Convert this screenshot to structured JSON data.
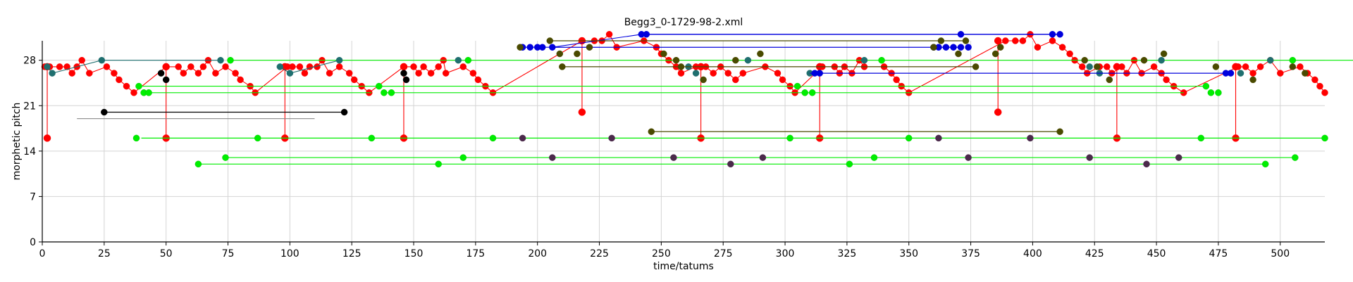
{
  "chart_data": {
    "type": "scatter",
    "title": "Begg3_0-1729-98-2.xml",
    "xlabel": "time/tatums",
    "ylabel": "morphetic pitch",
    "xlim": [
      0,
      518
    ],
    "ylim": [
      0,
      31
    ],
    "xticks": [
      0,
      25,
      50,
      75,
      100,
      125,
      150,
      175,
      200,
      225,
      250,
      275,
      300,
      325,
      350,
      375,
      400,
      425,
      450,
      475,
      500
    ],
    "yticks": [
      0,
      7,
      14,
      21,
      28
    ],
    "grid": true,
    "legend": "none",
    "colors": {
      "red": "#ff0000",
      "green": "#00ee00",
      "teal": "#1f6f6f",
      "blue": "#0000dd",
      "olive": "#4a4a00",
      "black": "#000000",
      "purple": "#4b2a4b",
      "gray": "#888888"
    },
    "series": [
      {
        "color": "red",
        "style": "chain",
        "points": [
          [
            1,
            27
          ],
          [
            3,
            27
          ],
          [
            7,
            27
          ],
          [
            10,
            27
          ],
          [
            12,
            26
          ],
          [
            14,
            27
          ],
          [
            16,
            28
          ],
          [
            19,
            26
          ],
          [
            26,
            27
          ],
          [
            29,
            26
          ],
          [
            31,
            25
          ],
          [
            34,
            24
          ],
          [
            37,
            23
          ],
          [
            50,
            27
          ],
          [
            55,
            27
          ],
          [
            57,
            26
          ],
          [
            60,
            27
          ],
          [
            63,
            26
          ],
          [
            65,
            27
          ],
          [
            67,
            28
          ],
          [
            70,
            26
          ],
          [
            74,
            27
          ],
          [
            78,
            26
          ],
          [
            80,
            25
          ],
          [
            84,
            24
          ],
          [
            86,
            23
          ],
          [
            99,
            27
          ],
          [
            101,
            27
          ],
          [
            104,
            27
          ],
          [
            106,
            26
          ],
          [
            108,
            27
          ],
          [
            111,
            27
          ],
          [
            113,
            28
          ],
          [
            116,
            26
          ],
          [
            120,
            27
          ],
          [
            124,
            26
          ],
          [
            126,
            25
          ],
          [
            129,
            24
          ],
          [
            132,
            23
          ],
          [
            146,
            27
          ],
          [
            150,
            27
          ],
          [
            152,
            26
          ],
          [
            154,
            27
          ],
          [
            157,
            26
          ],
          [
            160,
            27
          ],
          [
            162,
            28
          ],
          [
            163,
            26
          ],
          [
            170,
            27
          ],
          [
            174,
            26
          ],
          [
            176,
            25
          ],
          [
            179,
            24
          ],
          [
            182,
            23
          ],
          [
            218,
            31
          ],
          [
            223,
            31
          ],
          [
            226,
            31
          ],
          [
            229,
            32
          ],
          [
            232,
            30
          ],
          [
            243,
            31
          ],
          [
            248,
            30
          ],
          [
            250,
            29
          ],
          [
            253,
            28
          ],
          [
            256,
            27
          ],
          [
            258,
            26
          ],
          [
            264,
            27
          ],
          [
            268,
            27
          ],
          [
            271,
            26
          ],
          [
            274,
            27
          ],
          [
            277,
            26
          ],
          [
            280,
            25
          ],
          [
            283,
            26
          ],
          [
            292,
            27
          ],
          [
            297,
            26
          ],
          [
            299,
            25
          ],
          [
            302,
            24
          ],
          [
            304,
            23
          ],
          [
            315,
            27
          ],
          [
            320,
            27
          ],
          [
            322,
            26
          ],
          [
            324,
            27
          ],
          [
            327,
            26
          ],
          [
            330,
            28
          ],
          [
            332,
            27
          ],
          [
            340,
            27
          ],
          [
            343,
            26
          ],
          [
            345,
            25
          ],
          [
            347,
            24
          ],
          [
            350,
            23
          ],
          [
            389,
            31
          ],
          [
            393,
            31
          ],
          [
            396,
            31
          ],
          [
            399,
            32
          ],
          [
            402,
            30
          ],
          [
            408,
            31
          ],
          [
            412,
            30
          ],
          [
            415,
            29
          ],
          [
            417,
            28
          ],
          [
            420,
            27
          ],
          [
            422,
            26
          ],
          [
            427,
            27
          ],
          [
            430,
            27
          ],
          [
            432,
            26
          ],
          [
            436,
            27
          ],
          [
            438,
            26
          ],
          [
            441,
            28
          ],
          [
            444,
            26
          ],
          [
            449,
            27
          ],
          [
            452,
            26
          ],
          [
            454,
            25
          ],
          [
            457,
            24
          ],
          [
            461,
            23
          ],
          [
            483,
            27
          ],
          [
            486,
            27
          ],
          [
            489,
            26
          ],
          [
            492,
            27
          ],
          [
            496,
            28
          ],
          [
            500,
            26
          ],
          [
            508,
            27
          ],
          [
            511,
            26
          ],
          [
            514,
            25
          ],
          [
            516,
            24
          ],
          [
            518,
            23
          ]
        ]
      },
      {
        "color": "red",
        "style": "verticals",
        "points": [
          [
            2,
            27
          ],
          [
            2,
            16
          ],
          [
            50,
            27
          ],
          [
            50,
            16
          ],
          [
            98,
            27
          ],
          [
            98,
            16
          ],
          [
            146,
            27
          ],
          [
            146,
            16
          ],
          [
            218,
            31
          ],
          [
            218,
            20
          ],
          [
            266,
            27
          ],
          [
            266,
            16
          ],
          [
            314,
            27
          ],
          [
            314,
            16
          ],
          [
            386,
            31
          ],
          [
            386,
            20
          ],
          [
            434,
            27
          ],
          [
            434,
            16
          ],
          [
            482,
            27
          ],
          [
            482,
            16
          ]
        ]
      },
      {
        "color": "green",
        "style": "horizontals",
        "segments": [
          [
            [
              39,
              24
            ],
            [
              146,
              24
            ]
          ],
          [
            [
              41,
              23
            ],
            [
              133,
              23
            ]
          ],
          [
            [
              76,
              28
            ],
            [
              537,
              28
            ]
          ],
          [
            [
              40,
              16
            ],
            [
              518,
              16
            ]
          ],
          [
            [
              74,
              13
            ],
            [
              506,
              13
            ]
          ],
          [
            [
              63,
              12
            ],
            [
              495,
              12
            ]
          ],
          [
            [
              136,
              24
            ],
            [
              470,
              24
            ]
          ],
          [
            [
              138,
              23
            ],
            [
              461,
              23
            ]
          ]
        ]
      },
      {
        "color": "green",
        "style": "points",
        "points": [
          [
            39,
            24
          ],
          [
            41,
            23
          ],
          [
            43,
            23
          ],
          [
            76,
            28
          ],
          [
            87,
            16
          ],
          [
            38,
            16
          ],
          [
            133,
            16
          ],
          [
            136,
            24
          ],
          [
            138,
            23
          ],
          [
            141,
            23
          ],
          [
            182,
            16
          ],
          [
            172,
            28
          ],
          [
            160,
            12
          ],
          [
            170,
            13
          ],
          [
            302,
            16
          ],
          [
            305,
            24
          ],
          [
            308,
            23
          ],
          [
            311,
            23
          ],
          [
            336,
            13
          ],
          [
            326,
            12
          ],
          [
            350,
            16
          ],
          [
            339,
            28
          ],
          [
            468,
            16
          ],
          [
            470,
            24
          ],
          [
            472,
            23
          ],
          [
            475,
            23
          ],
          [
            505,
            28
          ],
          [
            506,
            13
          ],
          [
            494,
            12
          ],
          [
            518,
            16
          ],
          [
            63,
            12
          ],
          [
            74,
            13
          ]
        ]
      },
      {
        "color": "teal",
        "style": "chain",
        "points": [
          [
            2,
            27
          ],
          [
            4,
            26
          ],
          [
            24,
            28
          ],
          [
            72,
            28
          ]
        ]
      },
      {
        "color": "teal",
        "style": "chain",
        "points": [
          [
            96,
            27
          ],
          [
            100,
            26
          ],
          [
            120,
            28
          ]
        ]
      },
      {
        "color": "teal",
        "style": "points",
        "points": [
          [
            168,
            28
          ],
          [
            261,
            27
          ],
          [
            264,
            26
          ],
          [
            285,
            28
          ],
          [
            310,
            26
          ],
          [
            332,
            28
          ],
          [
            423,
            27
          ],
          [
            427,
            26
          ],
          [
            452,
            28
          ],
          [
            484,
            26
          ],
          [
            496,
            28
          ]
        ]
      },
      {
        "color": "blue",
        "style": "chain",
        "points": [
          [
            194,
            30
          ],
          [
            197,
            30
          ],
          [
            200,
            30
          ],
          [
            202,
            30
          ],
          [
            206,
            30
          ],
          [
            242,
            32
          ],
          [
            244,
            32
          ],
          [
            371,
            32
          ],
          [
            408,
            32
          ],
          [
            411,
            32
          ]
        ]
      },
      {
        "color": "blue",
        "style": "horizontals",
        "segments": [
          [
            [
              206,
              30
            ],
            [
              372,
              30
            ]
          ],
          [
            [
              242,
              32
            ],
            [
              411,
              32
            ]
          ],
          [
            [
              310,
              26
            ],
            [
              478,
              26
            ]
          ]
        ]
      },
      {
        "color": "blue",
        "style": "points",
        "points": [
          [
            360,
            30
          ],
          [
            362,
            30
          ],
          [
            365,
            30
          ],
          [
            368,
            30
          ],
          [
            371,
            30
          ],
          [
            374,
            30
          ],
          [
            312,
            26
          ],
          [
            314,
            26
          ],
          [
            478,
            26
          ],
          [
            480,
            26
          ]
        ]
      },
      {
        "color": "olive",
        "style": "points",
        "points": [
          [
            193,
            30
          ],
          [
            205,
            31
          ],
          [
            209,
            29
          ],
          [
            210,
            27
          ],
          [
            216,
            29
          ],
          [
            221,
            30
          ],
          [
            246,
            17
          ],
          [
            251,
            29
          ],
          [
            256,
            28
          ],
          [
            258,
            27
          ],
          [
            267,
            25
          ],
          [
            280,
            28
          ],
          [
            290,
            29
          ],
          [
            360,
            30
          ],
          [
            363,
            31
          ],
          [
            370,
            29
          ],
          [
            373,
            31
          ],
          [
            377,
            27
          ],
          [
            385,
            29
          ],
          [
            387,
            30
          ],
          [
            411,
            17
          ],
          [
            421,
            28
          ],
          [
            426,
            27
          ],
          [
            431,
            25
          ],
          [
            445,
            28
          ],
          [
            453,
            29
          ],
          [
            474,
            27
          ],
          [
            489,
            25
          ],
          [
            505,
            27
          ],
          [
            510,
            26
          ]
        ]
      },
      {
        "color": "olive",
        "style": "horizontals",
        "segments": [
          [
            [
              205,
              31
            ],
            [
              373,
              31
            ]
          ],
          [
            [
              210,
              27
            ],
            [
              377,
              27
            ]
          ],
          [
            [
              246,
              17
            ],
            [
              411,
              17
            ]
          ]
        ]
      },
      {
        "color": "black",
        "style": "points",
        "points": [
          [
            48,
            26
          ],
          [
            50,
            25
          ],
          [
            146,
            26
          ],
          [
            147,
            25
          ],
          [
            25,
            20
          ],
          [
            122,
            20
          ]
        ]
      },
      {
        "color": "black",
        "style": "horizontals",
        "segments": [
          [
            [
              25,
              20
            ],
            [
              122,
              20
            ]
          ]
        ]
      },
      {
        "color": "gray",
        "style": "horizontals",
        "segments": [
          [
            [
              14,
              19
            ],
            [
              110,
              19
            ]
          ]
        ]
      },
      {
        "color": "purple",
        "style": "points",
        "points": [
          [
            194,
            16
          ],
          [
            230,
            16
          ],
          [
            255,
            13
          ],
          [
            291,
            13
          ],
          [
            362,
            16
          ],
          [
            399,
            16
          ],
          [
            423,
            13
          ],
          [
            459,
            13
          ],
          [
            206,
            13
          ],
          [
            278,
            12
          ],
          [
            374,
            13
          ],
          [
            446,
            12
          ]
        ]
      }
    ]
  }
}
